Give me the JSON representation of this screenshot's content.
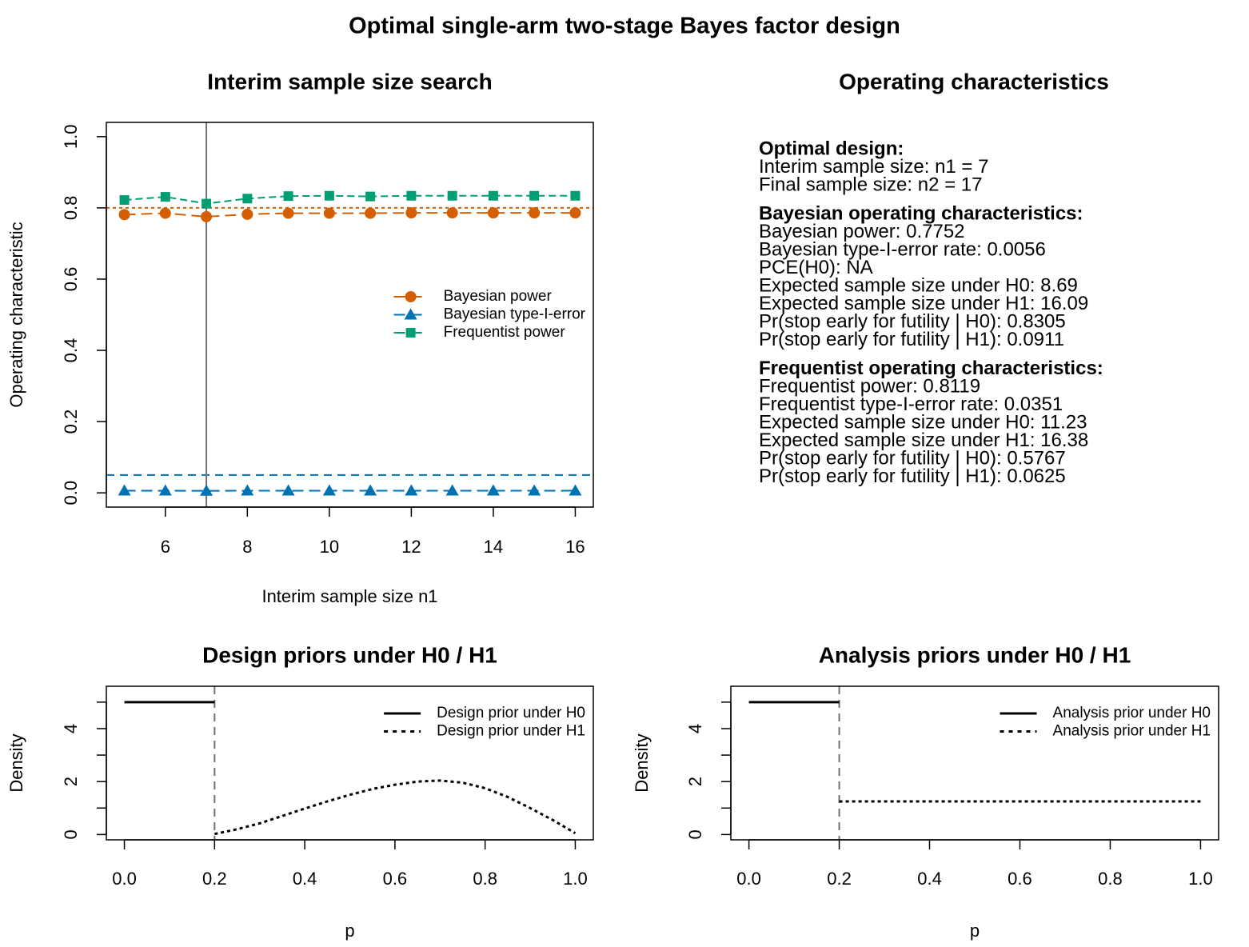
{
  "title": "Optimal single-arm two-stage Bayes factor design",
  "chart_data": [
    {
      "type": "line",
      "title": "Interim sample size search",
      "xlabel": "Interim sample size n1",
      "ylabel": "Operating characteristic",
      "x": [
        5,
        6,
        7,
        8,
        9,
        10,
        11,
        12,
        13,
        14,
        15,
        16
      ],
      "xlim": [
        4.56,
        16.44
      ],
      "xticks": [
        6,
        8,
        10,
        12,
        14,
        16
      ],
      "ylim": [
        -0.04,
        1.04
      ],
      "yticks": [
        {
          "value": 0,
          "label": "0.0"
        },
        0.2,
        0.4,
        0.6,
        0.8,
        {
          "value": 1,
          "label": "1.0"
        }
      ],
      "series": [
        {
          "name": "Bayesian power",
          "color": "#D55E00",
          "marker": "circle",
          "dash": "long",
          "values": [
            0.781,
            0.785,
            0.7752,
            0.782,
            0.785,
            0.785,
            0.785,
            0.786,
            0.786,
            0.786,
            0.786,
            0.786
          ]
        },
        {
          "name": "Bayesian type-I-error",
          "color": "#0072B2",
          "marker": "triangle",
          "dash": "long",
          "values": [
            0.006,
            0.006,
            0.0056,
            0.006,
            0.006,
            0.006,
            0.006,
            0.006,
            0.006,
            0.006,
            0.006,
            0.006
          ]
        },
        {
          "name": "Frequentist power",
          "color": "#009E73",
          "marker": "square",
          "dash": "short",
          "values": [
            0.822,
            0.831,
            0.8119,
            0.826,
            0.833,
            0.834,
            0.832,
            0.834,
            0.834,
            0.834,
            0.834,
            0.834
          ]
        }
      ],
      "hlines": [
        {
          "value": 0.8,
          "color": "#D55E00",
          "dash": "dotted"
        },
        {
          "value": 0.05,
          "color": "#0072B2",
          "dash": "dashed"
        }
      ],
      "vlines": [
        {
          "value": 7,
          "color": "#707070",
          "dash": "solid"
        }
      ],
      "legend": "right"
    },
    {
      "type": "line",
      "title": "Design priors under H0 / H1",
      "xlabel": "p",
      "ylabel": "Density",
      "xlim": [
        -0.04,
        1.04
      ],
      "xticks": [
        {
          "value": 0,
          "label": "0.0"
        },
        0.2,
        0.4,
        0.6,
        0.8,
        {
          "value": 1,
          "label": "1.0"
        }
      ],
      "ylim": [
        -0.2,
        5.6
      ],
      "yticks": [
        0,
        2,
        4
      ],
      "yticks_minor": [
        1,
        3,
        5
      ],
      "series": [
        {
          "name": "Design prior under H0",
          "color": "#000000",
          "dash": "solid",
          "x": [
            0,
            0.2
          ],
          "values": [
            5,
            5
          ]
        },
        {
          "name": "Design prior under H1",
          "color": "#000000",
          "dash": "dotted",
          "x": [
            0.2,
            0.25,
            0.3,
            0.35,
            0.4,
            0.45,
            0.5,
            0.55,
            0.6,
            0.65,
            0.7,
            0.75,
            0.8,
            0.85,
            0.9,
            0.95,
            1
          ],
          "values": [
            0.02,
            0.2,
            0.42,
            0.7,
            0.98,
            1.25,
            1.5,
            1.72,
            1.88,
            2.0,
            2.04,
            1.96,
            1.75,
            1.42,
            1.0,
            0.55,
            0.05
          ]
        }
      ],
      "vlines": [
        {
          "value": 0.2,
          "color": "#707070",
          "dash": "dashed"
        }
      ],
      "legend": "topright"
    },
    {
      "type": "line",
      "title": "Analysis priors under H0 / H1",
      "xlabel": "p",
      "ylabel": "Density",
      "xlim": [
        -0.04,
        1.04
      ],
      "xticks": [
        {
          "value": 0,
          "label": "0.0"
        },
        0.2,
        0.4,
        0.6,
        0.8,
        {
          "value": 1,
          "label": "1.0"
        }
      ],
      "ylim": [
        -0.2,
        5.6
      ],
      "yticks": [
        0,
        2,
        4
      ],
      "yticks_minor": [
        1,
        3,
        5
      ],
      "series": [
        {
          "name": "Analysis prior under H0",
          "color": "#000000",
          "dash": "solid",
          "x": [
            0,
            0.2
          ],
          "values": [
            5,
            5
          ]
        },
        {
          "name": "Analysis prior under H1",
          "color": "#000000",
          "dash": "dotted",
          "x": [
            0.2,
            1
          ],
          "values": [
            1.25,
            1.25
          ]
        }
      ],
      "vlines": [
        {
          "value": 0.2,
          "color": "#707070",
          "dash": "dashed"
        }
      ],
      "legend": "topright"
    }
  ],
  "text_panel": {
    "title": "Operating characteristics",
    "sections": [
      {
        "heading": "Optimal design:",
        "lines": [
          "Interim sample size: n1 = 7",
          "Final sample size: n2 = 17"
        ]
      },
      {
        "heading": "Bayesian operating characteristics:",
        "lines": [
          "Bayesian power: 0.7752",
          "Bayesian type-I-error rate: 0.0056",
          "PCE(H0): NA",
          "Expected sample size under H0: 8.69",
          "Expected sample size under H1: 16.09",
          "Pr(stop early for futility | H0): 0.8305",
          "Pr(stop early for futility | H1): 0.0911"
        ]
      },
      {
        "heading": "Frequentist operating characteristics:",
        "lines": [
          "Frequentist power: 0.8119",
          "Frequentist type-I-error rate: 0.0351",
          "Expected sample size under H0: 11.23",
          "Expected sample size under H1: 16.38",
          "Pr(stop early for futility | H0): 0.5767",
          "Pr(stop early for futility | H1): 0.0625"
        ]
      }
    ]
  }
}
